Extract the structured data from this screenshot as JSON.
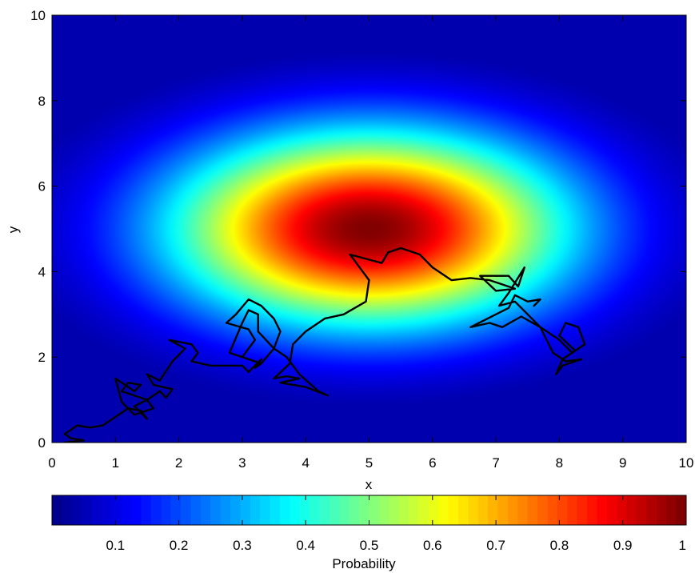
{
  "chart_data": {
    "type": "heatmap",
    "title": "",
    "xlabel": "x",
    "ylabel": "y",
    "xlim": [
      0,
      10
    ],
    "ylim": [
      0,
      10
    ],
    "xticks": [
      0,
      1,
      2,
      3,
      4,
      5,
      6,
      7,
      8,
      9,
      10
    ],
    "yticks": [
      0,
      2,
      4,
      6,
      8,
      10
    ],
    "grid": false,
    "colormap": "jet",
    "surface": {
      "description_of_function": "gaussian",
      "center": [
        5,
        5
      ],
      "sigma_x": 2.2,
      "sigma_y": 1.6,
      "peak": 1.0
    },
    "colorbar": {
      "label": "Probability",
      "range": [
        0,
        1
      ],
      "ticks": [
        0.1,
        0.2,
        0.3,
        0.4,
        0.5,
        0.6,
        0.7,
        0.8,
        0.9,
        1
      ],
      "colors": [
        "#00008F",
        "#0000FF",
        "#0080FF",
        "#00FFFF",
        "#80FF80",
        "#FFFF00",
        "#FF8000",
        "#FF0000",
        "#800000"
      ]
    },
    "path_color": "#000000",
    "path": [
      [
        0.2,
        0.0
      ],
      [
        0.5,
        0.05
      ],
      [
        0.3,
        0.1
      ],
      [
        0.2,
        0.2
      ],
      [
        0.4,
        0.4
      ],
      [
        0.6,
        0.35
      ],
      [
        0.8,
        0.4
      ],
      [
        1.0,
        0.6
      ],
      [
        1.2,
        0.8
      ],
      [
        1.4,
        0.75
      ],
      [
        1.5,
        0.55
      ],
      [
        1.3,
        0.85
      ],
      [
        1.5,
        1.0
      ],
      [
        1.6,
        0.8
      ],
      [
        1.3,
        0.65
      ],
      [
        1.1,
        0.95
      ],
      [
        1.0,
        1.5
      ],
      [
        1.3,
        1.2
      ],
      [
        1.4,
        1.35
      ],
      [
        1.2,
        1.4
      ],
      [
        1.1,
        1.2
      ],
      [
        1.5,
        1.0
      ],
      [
        1.7,
        1.2
      ],
      [
        1.8,
        1.05
      ],
      [
        1.9,
        1.25
      ],
      [
        1.6,
        1.35
      ],
      [
        1.5,
        1.6
      ],
      [
        1.7,
        1.45
      ],
      [
        1.9,
        1.9
      ],
      [
        2.1,
        2.2
      ],
      [
        1.85,
        2.4
      ],
      [
        2.2,
        2.3
      ],
      [
        2.3,
        2.1
      ],
      [
        2.2,
        1.9
      ],
      [
        2.5,
        1.8
      ],
      [
        3.0,
        1.8
      ],
      [
        3.1,
        1.65
      ],
      [
        3.3,
        1.95
      ],
      [
        3.2,
        1.75
      ],
      [
        3.3,
        1.85
      ],
      [
        3.0,
        2.0
      ],
      [
        3.2,
        2.4
      ],
      [
        3.1,
        2.65
      ],
      [
        2.75,
        2.8
      ],
      [
        2.9,
        3.0
      ],
      [
        3.1,
        3.35
      ],
      [
        3.3,
        3.2
      ],
      [
        3.5,
        2.9
      ],
      [
        3.6,
        2.6
      ],
      [
        3.5,
        2.2
      ],
      [
        3.25,
        2.6
      ],
      [
        3.25,
        3.0
      ],
      [
        3.1,
        3.1
      ],
      [
        3.0,
        2.8
      ],
      [
        2.8,
        2.1
      ],
      [
        3.3,
        1.85
      ],
      [
        3.5,
        2.2
      ],
      [
        3.7,
        2.0
      ],
      [
        3.9,
        1.6
      ],
      [
        4.2,
        1.2
      ],
      [
        4.35,
        1.1
      ],
      [
        4.0,
        1.3
      ],
      [
        3.6,
        1.4
      ],
      [
        3.9,
        1.5
      ],
      [
        3.7,
        1.55
      ],
      [
        3.5,
        1.5
      ],
      [
        3.75,
        1.85
      ],
      [
        3.8,
        2.3
      ],
      [
        4.0,
        2.6
      ],
      [
        4.3,
        2.9
      ],
      [
        4.6,
        3.0
      ],
      [
        4.95,
        3.3
      ],
      [
        5.0,
        3.8
      ],
      [
        4.8,
        4.2
      ],
      [
        4.7,
        4.4
      ],
      [
        4.95,
        4.3
      ],
      [
        5.2,
        4.2
      ],
      [
        5.3,
        4.45
      ],
      [
        5.5,
        4.55
      ],
      [
        5.8,
        4.4
      ],
      [
        6.0,
        4.1
      ],
      [
        6.3,
        3.8
      ],
      [
        6.6,
        3.85
      ],
      [
        6.9,
        3.8
      ],
      [
        7.1,
        3.7
      ],
      [
        7.3,
        3.6
      ],
      [
        7.0,
        3.55
      ],
      [
        6.75,
        3.9
      ],
      [
        7.2,
        3.9
      ],
      [
        7.35,
        3.65
      ],
      [
        7.45,
        4.1
      ],
      [
        7.2,
        3.5
      ],
      [
        7.05,
        3.2
      ],
      [
        7.3,
        3.3
      ],
      [
        7.5,
        3.0
      ],
      [
        7.7,
        2.7
      ],
      [
        8.0,
        2.4
      ],
      [
        8.2,
        2.1
      ],
      [
        8.4,
        2.3
      ],
      [
        8.3,
        2.7
      ],
      [
        8.1,
        2.8
      ],
      [
        8.0,
        2.5
      ],
      [
        8.25,
        2.15
      ],
      [
        8.05,
        1.95
      ],
      [
        7.95,
        1.6
      ],
      [
        8.05,
        1.8
      ],
      [
        8.35,
        1.95
      ],
      [
        8.1,
        1.9
      ],
      [
        7.9,
        2.1
      ],
      [
        7.7,
        2.7
      ],
      [
        7.4,
        2.95
      ],
      [
        7.1,
        2.7
      ],
      [
        6.9,
        2.8
      ],
      [
        6.6,
        2.7
      ],
      [
        7.0,
        3.0
      ],
      [
        7.2,
        3.15
      ],
      [
        7.3,
        3.45
      ],
      [
        7.5,
        3.3
      ],
      [
        7.7,
        3.35
      ],
      [
        7.6,
        3.2
      ]
    ]
  }
}
